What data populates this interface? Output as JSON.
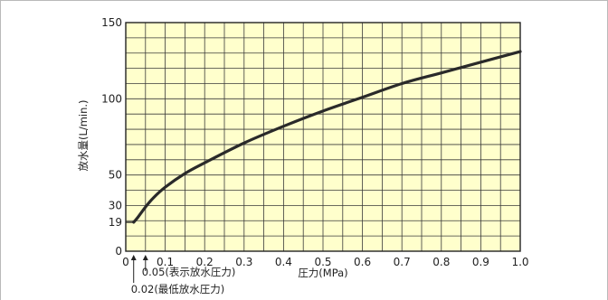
{
  "chart_data": {
    "type": "line",
    "xlabel": "圧力(MPa)",
    "ylabel": "放水量(L/min.)",
    "xlim": [
      0,
      1.0
    ],
    "ylim": [
      0,
      150
    ],
    "x_ticks": [
      "0",
      "0.1",
      "0.2",
      "0.3",
      "0.4",
      "0.5",
      "0.6",
      "0.7",
      "0.8",
      "0.9",
      "1.0"
    ],
    "y_ticks": [
      "0",
      "19",
      "30",
      "50",
      "100",
      "150"
    ],
    "grid": true,
    "background_color": "#ffffcc",
    "line_color": "#2a2a2a",
    "annotations": [
      {
        "text": "0.05(表示放水圧力)",
        "x": 0.05
      },
      {
        "text": "0.02(最低放水圧力)",
        "x": 0.02
      }
    ],
    "series": [
      {
        "x": [
          0.02,
          0.03,
          0.05,
          0.07,
          0.1,
          0.15,
          0.2,
          0.3,
          0.4,
          0.5,
          0.6,
          0.7,
          0.8,
          0.9,
          1.0
        ],
        "values": [
          19,
          22,
          29,
          35,
          42,
          51,
          58,
          71,
          82,
          92,
          101,
          110,
          117,
          124,
          131
        ]
      }
    ]
  }
}
